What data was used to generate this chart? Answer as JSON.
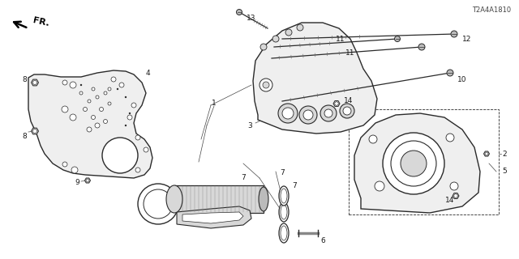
{
  "part_code": "T2A4A1810",
  "background_color": "#ffffff",
  "line_color": "#2a2a2a",
  "label_color": "#1a1a1a",
  "gray_fill": "#d8d8d8",
  "light_fill": "#efefef"
}
